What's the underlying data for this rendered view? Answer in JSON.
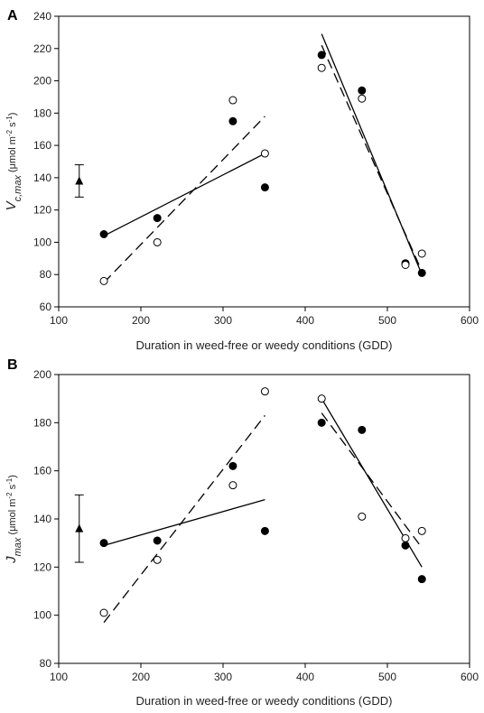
{
  "chart_data": [
    {
      "type": "scatter",
      "panel_label": "A",
      "xlabel": "Duration in weed-free or weedy conditions (GDD)",
      "ylabel_parts": [
        {
          "t": "V",
          "style": "italic",
          "size": "big"
        },
        {
          "t": "c,max",
          "style": "italic",
          "size": "sub"
        },
        {
          "t": " (μmol m",
          "style": "normal",
          "size": "small"
        },
        {
          "t": "-2",
          "style": "normal",
          "size": "sup"
        },
        {
          "t": " s",
          "style": "normal",
          "size": "small"
        },
        {
          "t": "-1",
          "style": "normal",
          "size": "sup"
        },
        {
          "t": ")",
          "style": "normal",
          "size": "small"
        }
      ],
      "xlim": [
        100,
        600
      ],
      "ylim": [
        60,
        240
      ],
      "xticks": [
        "100",
        "200",
        "300",
        "400",
        "500",
        "600"
      ],
      "yticks": [
        "60",
        "80",
        "100",
        "120",
        "140",
        "160",
        "180",
        "200",
        "220",
        "240"
      ],
      "grid": false,
      "series": [
        {
          "marker": "filled-circle",
          "points": [
            [
              155,
              105
            ],
            [
              220,
              115
            ],
            [
              312,
              175
            ],
            [
              351,
              134
            ],
            [
              420,
              216
            ],
            [
              469,
              194
            ],
            [
              522,
              87
            ],
            [
              542,
              81
            ]
          ],
          "fits": [
            {
              "x": [
                155,
                351
              ],
              "y": [
                104,
                155
              ],
              "style": "solid"
            },
            {
              "x": [
                420,
                542
              ],
              "y": [
                229,
                80
              ],
              "style": "solid"
            }
          ]
        },
        {
          "marker": "open-circle",
          "points": [
            [
              155,
              76
            ],
            [
              220,
              100
            ],
            [
              312,
              188
            ],
            [
              351,
              155
            ],
            [
              420,
              208
            ],
            [
              469,
              189
            ],
            [
              522,
              86
            ],
            [
              542,
              93
            ]
          ],
          "fits": [
            {
              "x": [
                155,
                351
              ],
              "y": [
                75,
                178
              ],
              "style": "dashed"
            },
            {
              "x": [
                420,
                542
              ],
              "y": [
                222,
                82
              ],
              "style": "dashed"
            }
          ]
        }
      ],
      "reference": {
        "marker": "filled-triangle",
        "x": 125,
        "y": 138,
        "err_low": 128,
        "err_high": 148
      }
    },
    {
      "type": "scatter",
      "panel_label": "B",
      "xlabel": "Duration in weed-free or weedy conditions (GDD)",
      "ylabel_parts": [
        {
          "t": "J",
          "style": "italic",
          "size": "big"
        },
        {
          "t": "max",
          "style": "italic",
          "size": "sub"
        },
        {
          "t": " (μmol m",
          "style": "normal",
          "size": "small"
        },
        {
          "t": "-2",
          "style": "normal",
          "size": "sup"
        },
        {
          "t": " s",
          "style": "normal",
          "size": "small"
        },
        {
          "t": "-1",
          "style": "normal",
          "size": "sup"
        },
        {
          "t": ")",
          "style": "normal",
          "size": "small"
        }
      ],
      "xlim": [
        100,
        600
      ],
      "ylim": [
        80,
        200
      ],
      "xticks": [
        "100",
        "200",
        "300",
        "400",
        "500",
        "600"
      ],
      "yticks": [
        "80",
        "100",
        "120",
        "140",
        "160",
        "180",
        "200"
      ],
      "grid": false,
      "series": [
        {
          "marker": "filled-circle",
          "points": [
            [
              155,
              130
            ],
            [
              220,
              131
            ],
            [
              312,
              162
            ],
            [
              351,
              135
            ],
            [
              420,
              180
            ],
            [
              469,
              177
            ],
            [
              522,
              129
            ],
            [
              542,
              115
            ]
          ],
          "fits": [
            {
              "x": [
                155,
                351
              ],
              "y": [
                129,
                148
              ],
              "style": "solid"
            },
            {
              "x": [
                420,
                542
              ],
              "y": [
                190,
                120
              ],
              "style": "solid"
            }
          ]
        },
        {
          "marker": "open-circle",
          "points": [
            [
              155,
              101
            ],
            [
              220,
              123
            ],
            [
              312,
              154
            ],
            [
              351,
              193
            ],
            [
              420,
              190
            ],
            [
              469,
              141
            ],
            [
              522,
              132
            ],
            [
              542,
              135
            ]
          ],
          "fits": [
            {
              "x": [
                155,
                351
              ],
              "y": [
                97,
                183
              ],
              "style": "dashed"
            },
            {
              "x": [
                420,
                542
              ],
              "y": [
                184,
                128
              ],
              "style": "dashed"
            }
          ]
        }
      ],
      "reference": {
        "marker": "filled-triangle",
        "x": 125,
        "y": 136,
        "err_low": 122,
        "err_high": 150
      }
    }
  ]
}
